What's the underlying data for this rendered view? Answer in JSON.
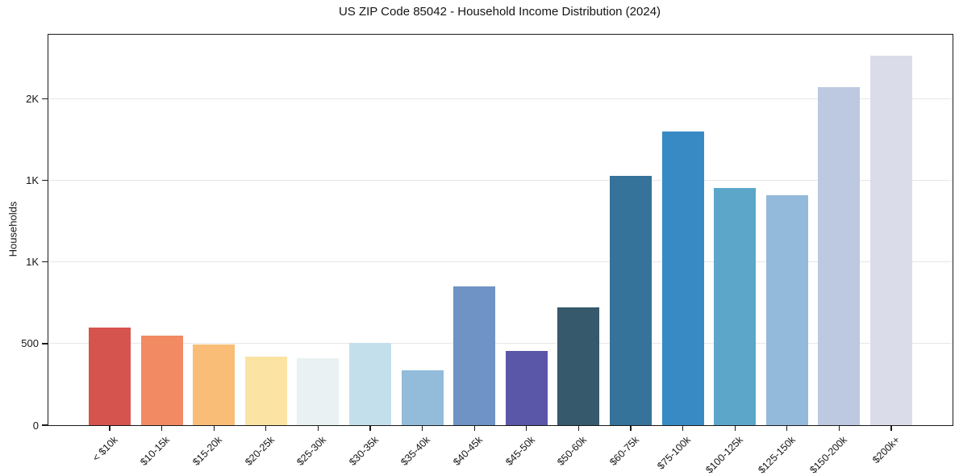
{
  "chart_data": {
    "type": "bar",
    "title": "US ZIP Code 85042 - Household Income Distribution (2024)",
    "xlabel": "",
    "ylabel": "Households",
    "categories": [
      "< $10k",
      "$10-15k",
      "$15-20k",
      "$20-25k",
      "$25-30k",
      "$30-35k",
      "$35-40k",
      "$40-45k",
      "$45-50k",
      "$50-60k",
      "$60-75k",
      "$75-100k",
      "$100-125k",
      "$125-150k",
      "$150-200k",
      "$200k+"
    ],
    "values": [
      600,
      550,
      495,
      420,
      410,
      505,
      335,
      850,
      455,
      720,
      1530,
      1800,
      1455,
      1410,
      2070,
      2265
    ],
    "bar_colors": [
      "#d6544e",
      "#f28a63",
      "#f9bd77",
      "#fbe3a4",
      "#e9f1f2",
      "#c4dfec",
      "#92bcda",
      "#6e93c4",
      "#5a57a8",
      "#36596c",
      "#35739a",
      "#388ac4",
      "#5ca7c9",
      "#94badb",
      "#bcc9e0",
      "#dadce9"
    ],
    "ylim": [
      0,
      2393
    ],
    "yticks": [
      {
        "value": 0,
        "label": "0"
      },
      {
        "value": 500,
        "label": "500"
      },
      {
        "value": 1000,
        "label": "1K"
      },
      {
        "value": 1500,
        "label": "1K"
      },
      {
        "value": 2000,
        "label": "2K"
      }
    ],
    "grid": "horizontal-only",
    "legend": "none",
    "xtick_rotation_deg": 45,
    "style": {
      "background_color": "#ffffff",
      "axis_color": "#1a1a1a",
      "text_color": "#151515",
      "grid_color": "#e7e7e7"
    }
  }
}
